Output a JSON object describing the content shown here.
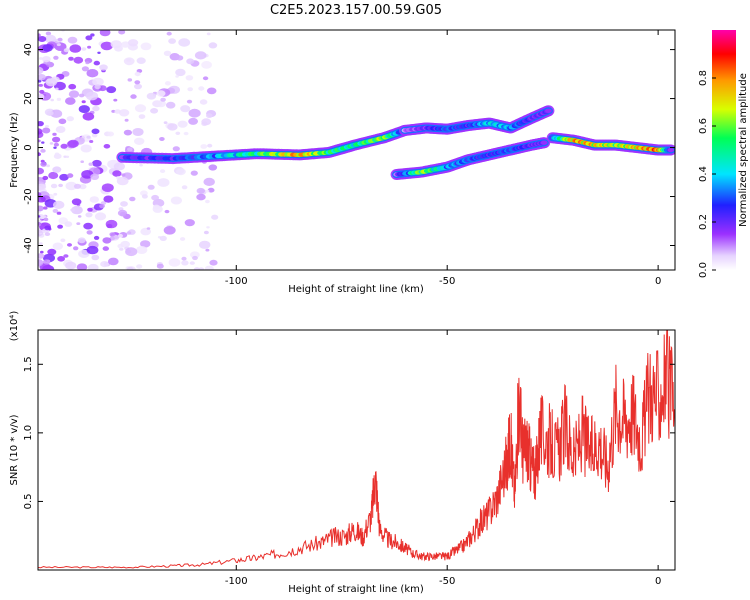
{
  "figure": {
    "title": "C2E5.2023.157.00.59.G05"
  },
  "chart_data": [
    {
      "type": "heatmap",
      "xlabel": "Height of straight line (km)",
      "ylabel": "Frequency (Hz)",
      "xlim": [
        -147,
        4
      ],
      "ylim": [
        -50,
        48
      ],
      "xticks": [
        -100,
        -50,
        0
      ],
      "yticks": [
        -40,
        -20,
        0,
        20,
        40
      ],
      "colorbar": {
        "label": "Normalized spectral amplitude",
        "range": [
          0,
          1
        ],
        "ticks": [
          0.0,
          0.2,
          0.4,
          0.6,
          0.8
        ],
        "colormap": [
          "#ffffff",
          "#e6d2ff",
          "#9b30ff",
          "#2020ff",
          "#00e5ff",
          "#00ff55",
          "#d8ff00",
          "#ff9900",
          "#ff0000",
          "#ff00aa"
        ]
      },
      "traces": [
        {
          "x": [
            -127,
            -115,
            -105,
            -95,
            -85,
            -78,
            -72,
            -65,
            -60
          ],
          "y": [
            -4,
            -4.5,
            -3.5,
            -2.5,
            -3,
            -2,
            1,
            4,
            7
          ],
          "amplitude": [
            0.3,
            0.35,
            0.45,
            0.6,
            0.85,
            0.6,
            0.55,
            0.7,
            0.3
          ]
        },
        {
          "x": [
            -60,
            -55,
            -50,
            -45,
            -40,
            -35,
            -30,
            -26
          ],
          "y": [
            7,
            8,
            7.5,
            9,
            10,
            8,
            12,
            15
          ],
          "amplitude": [
            0.2,
            0.3,
            0.4,
            0.35,
            0.5,
            0.45,
            0.3,
            0.3
          ]
        },
        {
          "x": [
            -62,
            -56,
            -50,
            -45,
            -40,
            -35,
            -30,
            -27
          ],
          "y": [
            -11,
            -10,
            -8,
            -5,
            -3,
            -1,
            1,
            2
          ],
          "amplitude": [
            0.25,
            0.7,
            0.45,
            0.4,
            0.35,
            0.4,
            0.3,
            0.3
          ]
        },
        {
          "x": [
            -25,
            -20,
            -15,
            -10,
            -5,
            0,
            3
          ],
          "y": [
            4,
            3,
            1,
            1,
            0,
            -1,
            -1
          ],
          "amplitude": [
            0.4,
            0.85,
            0.8,
            0.7,
            0.8,
            0.9,
            0.3
          ]
        }
      ]
    },
    {
      "type": "line",
      "xlabel": "Height of straight line (km)",
      "ylabel": "SNR (10 * v/v)",
      "scale_note": "(x10⁴)",
      "xlim": [
        -147,
        4
      ],
      "ylim": [
        0,
        1.75
      ],
      "xticks": [
        -100,
        -50,
        0
      ],
      "yticks": [
        0.5,
        1.0,
        1.5
      ],
      "ytick_labels": [
        "0.5",
        "1.0",
        "1.5"
      ],
      "series": [
        {
          "color": "#e8302c",
          "x": [
            -147,
            -135,
            -125,
            -115,
            -108,
            -100,
            -95,
            -90,
            -85,
            -80,
            -77,
            -74,
            -72,
            -70,
            -68,
            -67,
            -66,
            -64,
            -62,
            -60,
            -58,
            -56,
            -54,
            -52,
            -50,
            -48,
            -46,
            -44,
            -42,
            -40,
            -38,
            -36,
            -35,
            -34,
            -33,
            -32,
            -31,
            -30,
            -29,
            -28,
            -26,
            -24,
            -22,
            -20,
            -18,
            -16,
            -14,
            -12,
            -10,
            -8,
            -6,
            -4,
            -2,
            0,
            2,
            4
          ],
          "y": [
            0.02,
            0.02,
            0.02,
            0.03,
            0.04,
            0.07,
            0.09,
            0.12,
            0.16,
            0.2,
            0.24,
            0.25,
            0.3,
            0.24,
            0.4,
            0.68,
            0.3,
            0.22,
            0.2,
            0.16,
            0.12,
            0.1,
            0.1,
            0.1,
            0.1,
            0.14,
            0.18,
            0.26,
            0.35,
            0.42,
            0.55,
            0.78,
            0.95,
            0.55,
            1.25,
            0.85,
            0.9,
            0.75,
            0.7,
            1.0,
            0.95,
            0.85,
            1.05,
            0.8,
            1.0,
            0.85,
            0.95,
            0.75,
            1.2,
            1.1,
            1.15,
            0.95,
            1.3,
            1.25,
            1.4,
            1.15
          ]
        }
      ]
    }
  ]
}
